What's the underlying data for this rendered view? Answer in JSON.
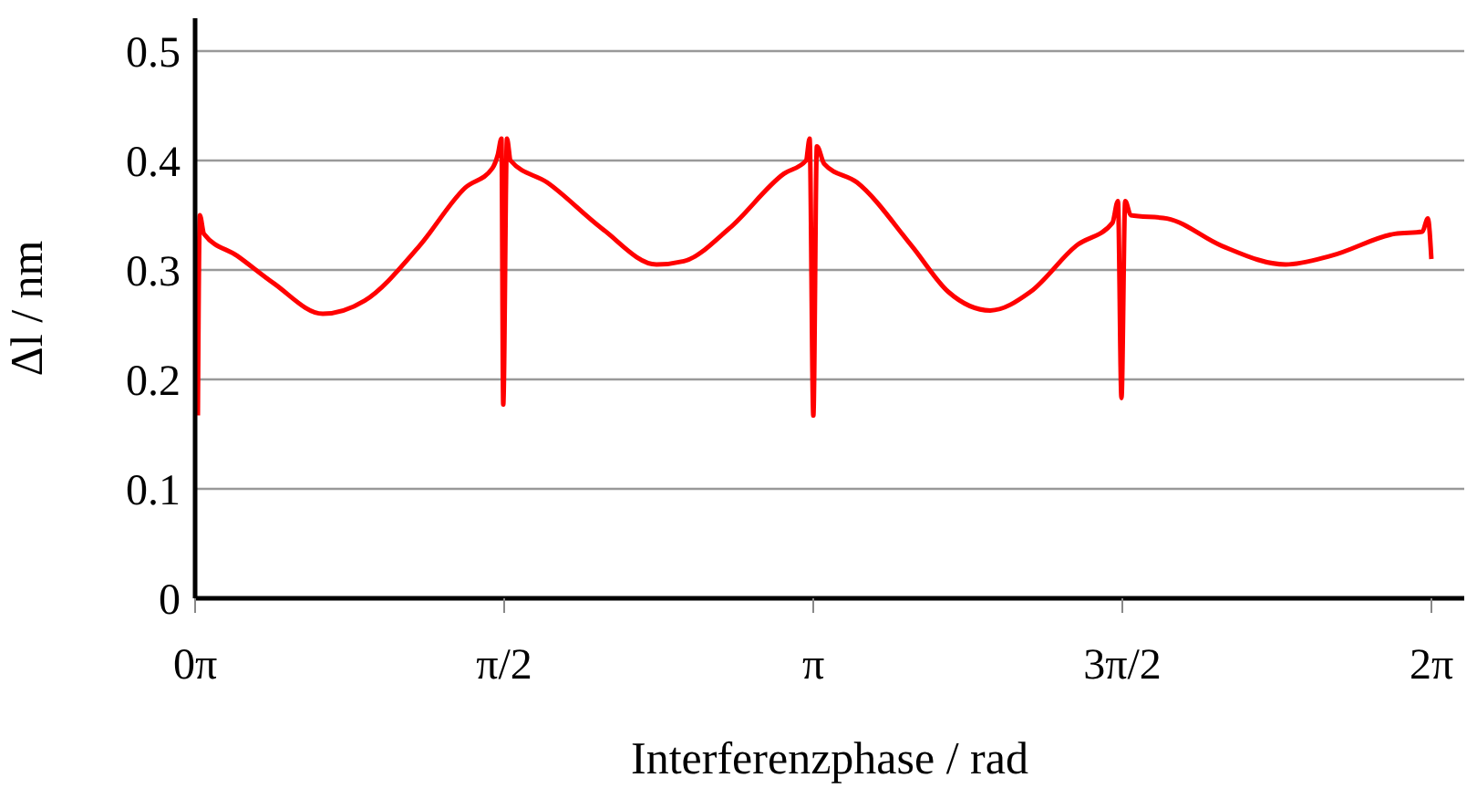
{
  "chart_data": {
    "type": "line",
    "xlabel": "Interferenzphase / rad",
    "ylabel": "Δl / nm",
    "x": [
      0.014,
      0.024,
      0.045,
      0.213,
      0.398,
      0.649,
      0.862,
      1.14,
      1.372,
      1.511,
      1.538,
      1.557,
      1.566,
      1.585,
      1.603,
      1.789,
      2.067,
      2.345,
      2.484,
      2.715,
      2.993,
      3.105,
      3.123,
      3.142,
      3.16,
      3.197,
      3.364,
      3.642,
      3.828,
      4.041,
      4.245,
      4.477,
      4.662,
      4.69,
      4.708,
      4.727,
      4.755,
      4.94,
      5.218,
      5.542,
      5.774,
      6.098,
      6.237,
      6.265,
      6.283
    ],
    "series": [
      {
        "color": "#ff0000",
        "values": [
          0.167,
          0.35,
          0.333,
          0.313,
          0.288,
          0.26,
          0.272,
          0.322,
          0.375,
          0.393,
          0.405,
          0.42,
          0.177,
          0.42,
          0.4,
          0.38,
          0.338,
          0.305,
          0.308,
          0.338,
          0.388,
          0.4,
          0.42,
          0.167,
          0.413,
          0.397,
          0.38,
          0.322,
          0.28,
          0.263,
          0.28,
          0.322,
          0.343,
          0.363,
          0.183,
          0.363,
          0.35,
          0.347,
          0.322,
          0.305,
          0.313,
          0.333,
          0.335,
          0.347,
          0.31
        ]
      }
    ],
    "xlim": [
      0,
      6.45
    ],
    "ylim": [
      0,
      0.53
    ],
    "xticks": [
      {
        "value": 0,
        "label": "0π"
      },
      {
        "value": 1.5708,
        "label": "π/2"
      },
      {
        "value": 3.1416,
        "label": "π"
      },
      {
        "value": 4.7124,
        "label": "3π/2"
      },
      {
        "value": 6.2832,
        "label": "2π"
      }
    ],
    "yticks": [
      0,
      0.1,
      0.2,
      0.3,
      0.4,
      0.5
    ],
    "grid": "y",
    "legend": false,
    "marker": "none",
    "line_style": "solid"
  }
}
